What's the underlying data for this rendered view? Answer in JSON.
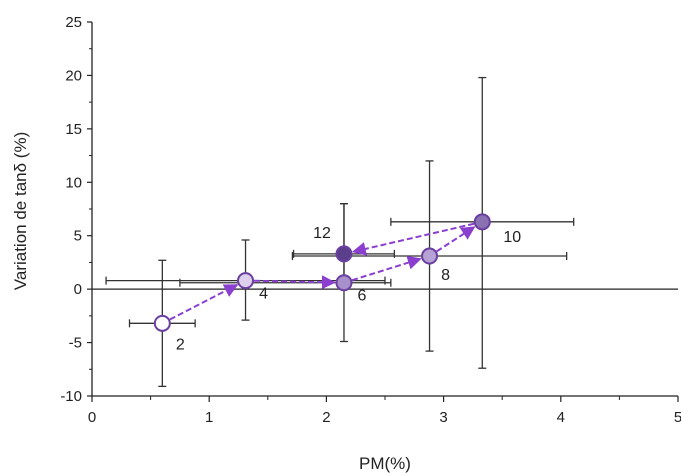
{
  "chart_data": {
    "type": "scatter",
    "xlabel": "PM(%)",
    "ylabel": "Variation de tanδ (%)",
    "xlim": [
      0,
      5
    ],
    "ylim": [
      -10,
      25
    ],
    "x_ticks": [
      "0",
      "1",
      "2",
      "3",
      "4",
      "5"
    ],
    "y_ticks": [
      "-10",
      "-5",
      "0",
      "5",
      "10",
      "15",
      "20",
      "25"
    ],
    "grid": false,
    "zero_line": true,
    "points": [
      {
        "label": "2",
        "x": 0.6,
        "y": -3.2,
        "xerr": [
          0.28,
          0.28
        ],
        "yerr": [
          5.9,
          5.9
        ],
        "fill": "#ffffff"
      },
      {
        "label": "4",
        "x": 1.31,
        "y": 0.8,
        "xerr": [
          1.19,
          1.19
        ],
        "yerr": [
          3.7,
          3.8
        ],
        "fill": "#ddd0ec"
      },
      {
        "label": "6",
        "x": 2.15,
        "y": 0.6,
        "xerr": [
          1.4,
          0.4
        ],
        "yerr": [
          5.5,
          7.4
        ],
        "fill": "#a890cc"
      },
      {
        "label": "8",
        "x": 2.88,
        "y": 3.1,
        "xerr": [
          1.17,
          1.17
        ],
        "yerr": [
          8.9,
          8.9
        ],
        "fill": "#b7a2d6"
      },
      {
        "label": "10",
        "x": 3.33,
        "y": 6.3,
        "xerr": [
          0.78,
          0.78
        ],
        "yerr": [
          13.7,
          13.5
        ],
        "fill": "#8a72b2"
      },
      {
        "label": "12",
        "x": 2.15,
        "y": 3.3,
        "xerr": [
          0.43,
          0.43
        ],
        "yerr": [
          3.1,
          4.7
        ],
        "fill": "#5c3f8a"
      }
    ],
    "arrows": [
      [
        "2",
        "4"
      ],
      [
        "4",
        "6"
      ],
      [
        "6",
        "8"
      ],
      [
        "8",
        "10"
      ],
      [
        "10",
        "12"
      ]
    ],
    "colors": {
      "arrow": "#8a3fcf",
      "marker_edge": "#6a3fa0",
      "errorbar": "#333333",
      "axis": "#222222"
    }
  }
}
